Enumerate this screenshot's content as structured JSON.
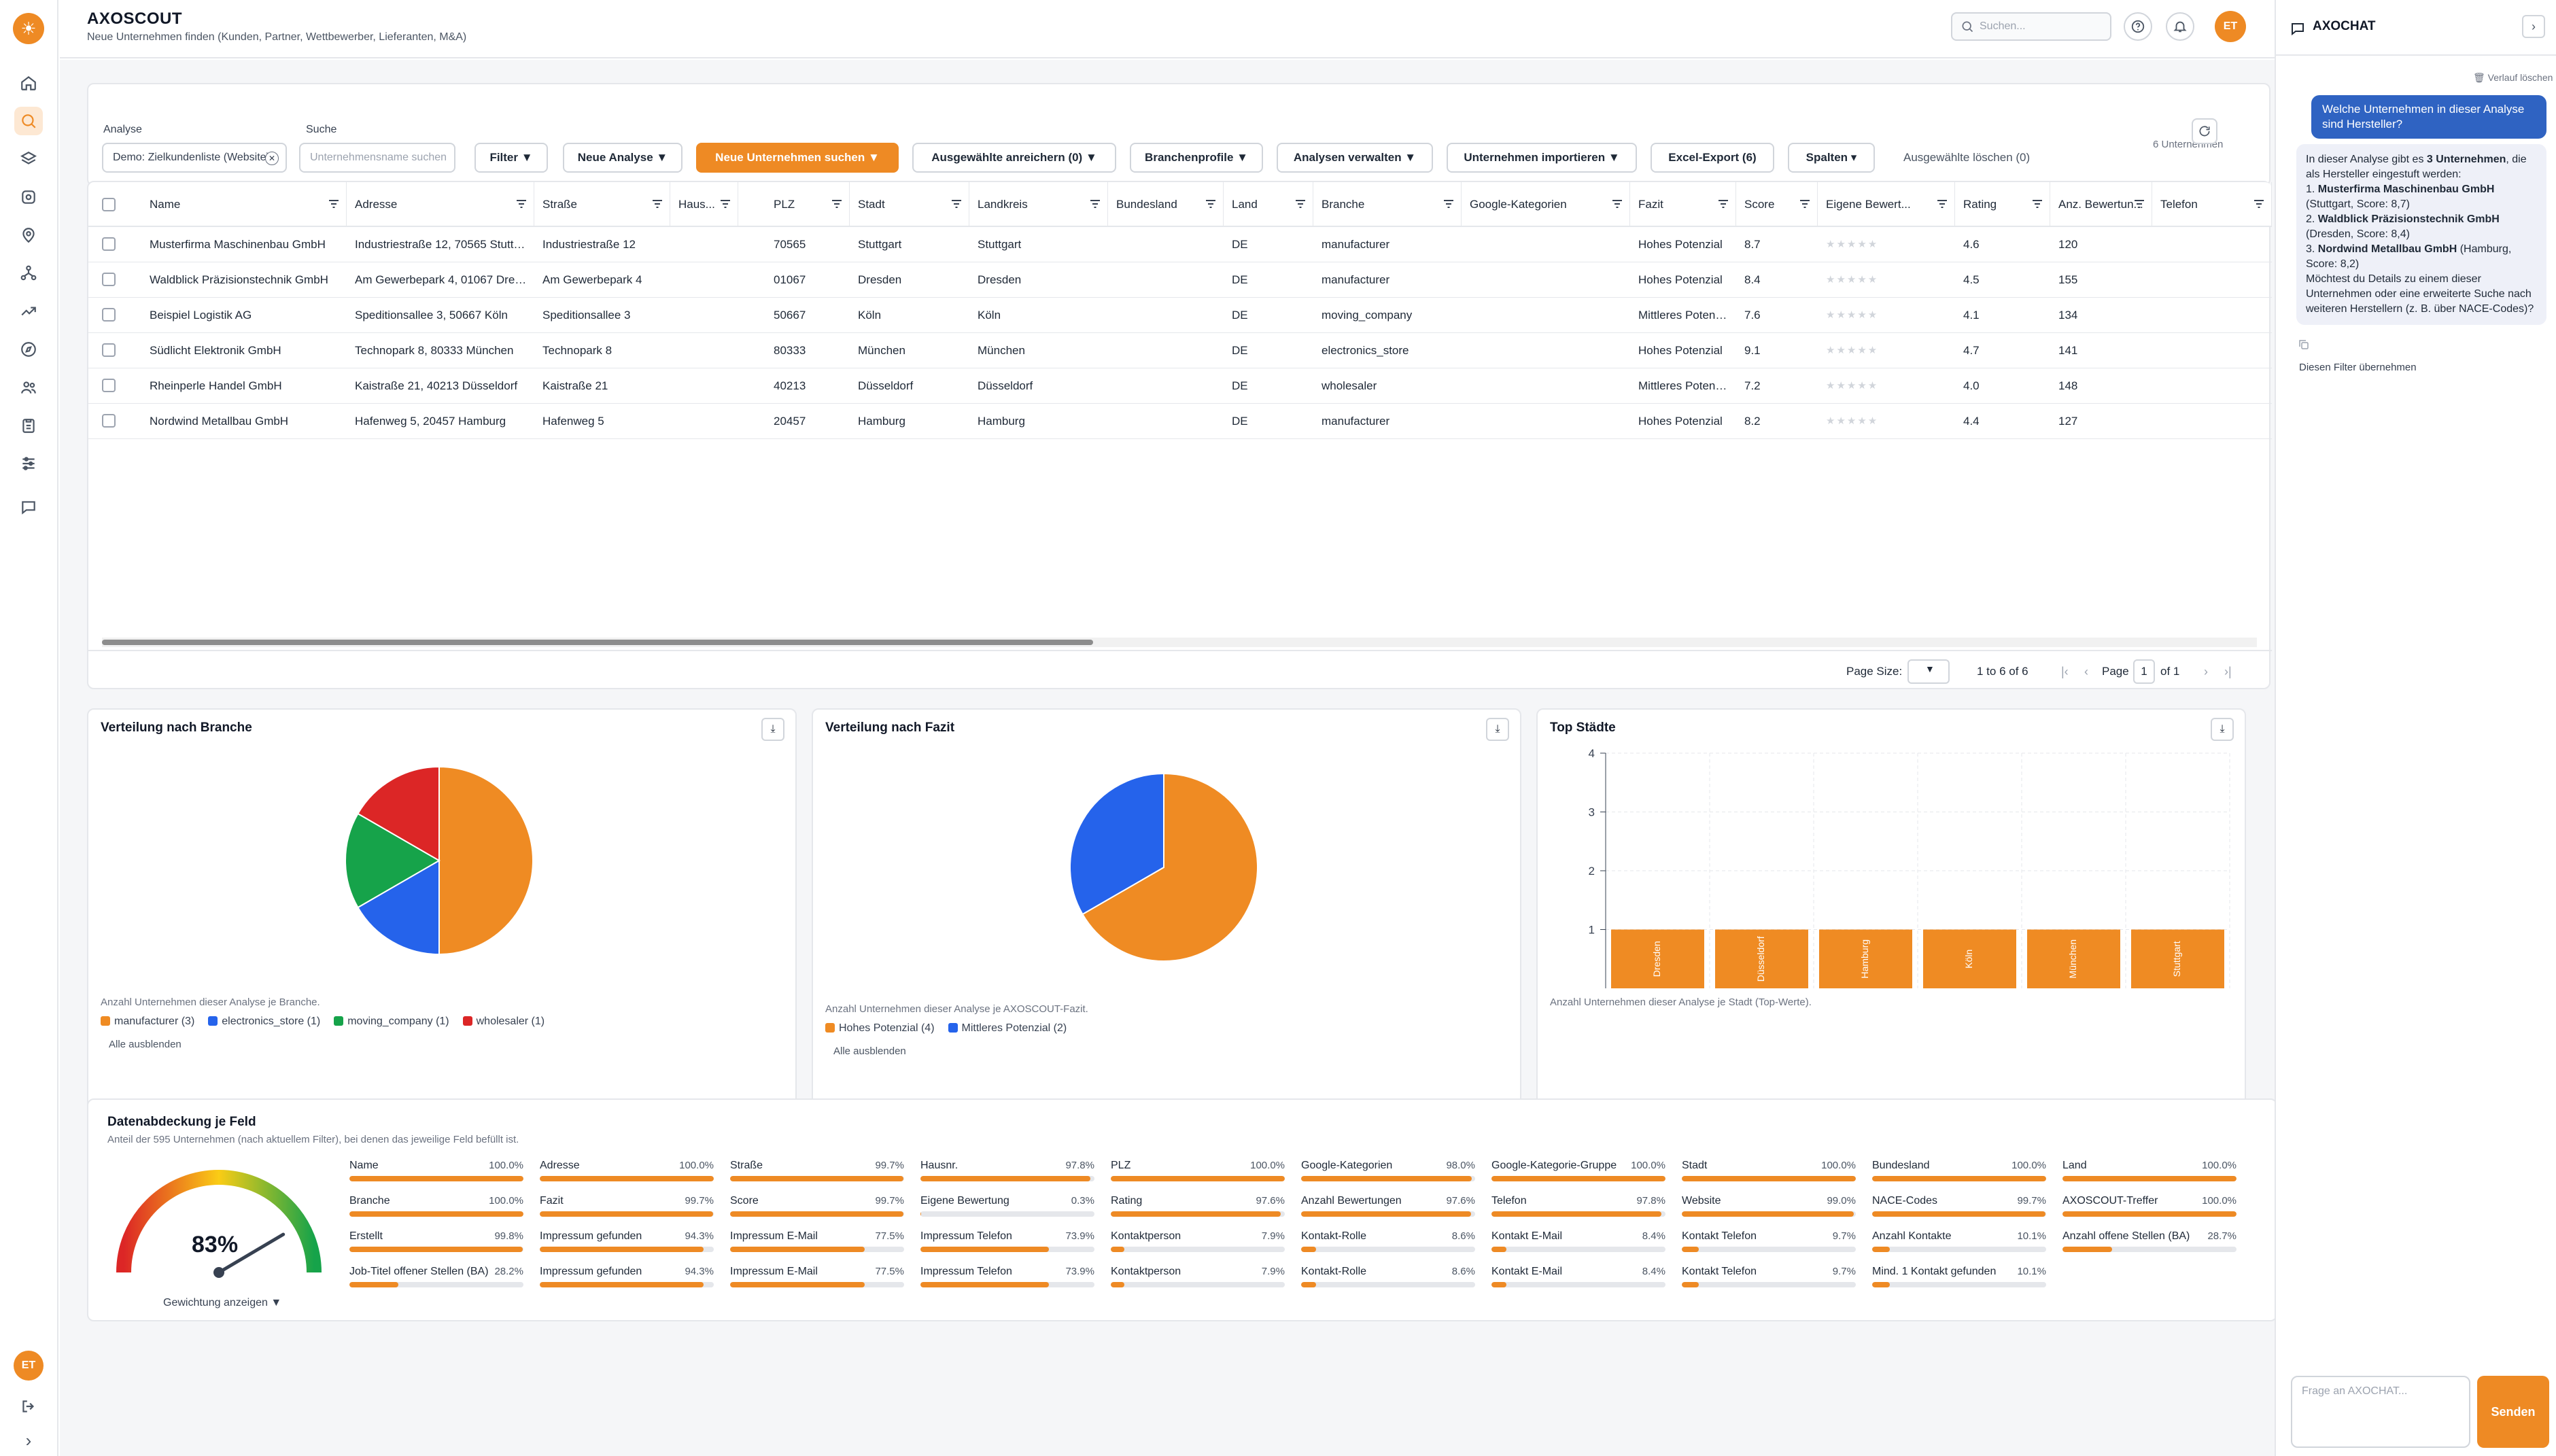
{
  "app": {
    "title": "AXOSCOUT",
    "subtitle": "Neue Unternehmen finden (Kunden, Partner, Wettbewerber, Lieferanten, M&A)",
    "search_placeholder": "Suchen...",
    "user_initials": "ET",
    "accent_color": "#ee8a24"
  },
  "sidebar": {
    "logo_glyph": "☀",
    "items": [
      {
        "icon": "home-icon"
      },
      {
        "icon": "search-icon",
        "active": true
      },
      {
        "icon": "layers-icon"
      },
      {
        "icon": "database-icon"
      },
      {
        "icon": "map-pin-icon"
      },
      {
        "icon": "network-icon"
      },
      {
        "icon": "trend-icon"
      },
      {
        "icon": "compass-icon"
      },
      {
        "icon": "users-icon"
      },
      {
        "icon": "clipboard-icon"
      },
      {
        "icon": "sliders-icon"
      },
      {
        "icon": "message-icon"
      }
    ],
    "user_initials": "ET",
    "logout_glyph": "⇥",
    "expand_glyph": "›"
  },
  "toolbar": {
    "analyse_label": "Analyse",
    "analyse_value": "Demo: Zielkundenliste (Website)",
    "suche_label": "Suche",
    "suche_placeholder": "Unternehmensname suchen",
    "filter": "Filter ▼",
    "new_analysis": "Neue Analyse ▼",
    "find_companies": "Neue Unternehmen suchen ▼",
    "enrich": "Ausgewählte anreichern (0) ▼",
    "branch_profiles": "Branchenprofile ▼",
    "manage": "Analysen verwalten ▼",
    "import": "Unternehmen importieren ▼",
    "excel": "Excel-Export (6)",
    "columns": "Spalten ▾",
    "clear_selected": "Ausgewählte löschen (0)",
    "count": "6 Unternehmen"
  },
  "table": {
    "columns": [
      "Name",
      "Adresse",
      "Straße",
      "Haus...",
      "PLZ",
      "Stadt",
      "Landkreis",
      "Bundesland",
      "Land",
      "Branche",
      "Google-Kategorien",
      "Fazit",
      "Score",
      "Eigene Bewert...",
      "Rating",
      "Anz. Bewertun...",
      "Telefon"
    ],
    "rows": [
      {
        "name": "Musterfirma Maschinenbau GmbH",
        "adresse": "Industriestraße 12, 70565 Stuttgart",
        "strasse": "Industriestraße 12",
        "plz": "70565",
        "stadt": "Stuttgart",
        "landkreis": "Stuttgart",
        "land": "DE",
        "branche": "manufacturer",
        "fazit": "Hohes Potenzial",
        "score": "8.7",
        "stars": "★★★★★",
        "rating": "4.6",
        "anz": "120"
      },
      {
        "name": "Waldblick Präzisionstechnik GmbH",
        "adresse": "Am Gewerbepark 4, 01067 Dresden",
        "strasse": "Am Gewerbepark 4",
        "plz": "01067",
        "stadt": "Dresden",
        "landkreis": "Dresden",
        "land": "DE",
        "branche": "manufacturer",
        "fazit": "Hohes Potenzial",
        "score": "8.4",
        "stars": "★★★★★",
        "rating": "4.5",
        "anz": "155"
      },
      {
        "name": "Beispiel Logistik AG",
        "adresse": "Speditionsallee 3, 50667 Köln",
        "strasse": "Speditionsallee 3",
        "plz": "50667",
        "stadt": "Köln",
        "landkreis": "Köln",
        "land": "DE",
        "branche": "moving_company",
        "fazit": "Mittleres Potenzial",
        "score": "7.6",
        "stars": "★★★★★",
        "rating": "4.1",
        "anz": "134"
      },
      {
        "name": "Südlicht Elektronik GmbH",
        "adresse": "Technopark 8, 80333 München",
        "strasse": "Technopark 8",
        "plz": "80333",
        "stadt": "München",
        "landkreis": "München",
        "land": "DE",
        "branche": "electronics_store",
        "fazit": "Hohes Potenzial",
        "score": "9.1",
        "stars": "★★★★★",
        "rating": "4.7",
        "anz": "141"
      },
      {
        "name": "Rheinperle Handel GmbH",
        "adresse": "Kaistraße 21, 40213 Düsseldorf",
        "strasse": "Kaistraße 21",
        "plz": "40213",
        "stadt": "Düsseldorf",
        "landkreis": "Düsseldorf",
        "land": "DE",
        "branche": "wholesaler",
        "fazit": "Mittleres Potenzial",
        "score": "7.2",
        "stars": "★★★★★",
        "rating": "4.0",
        "anz": "148"
      },
      {
        "name": "Nordwind Metallbau GmbH",
        "adresse": "Hafenweg 5, 20457 Hamburg",
        "strasse": "Hafenweg 5",
        "plz": "20457",
        "stadt": "Hamburg",
        "landkreis": "Hamburg",
        "land": "DE",
        "branche": "manufacturer",
        "fazit": "Hohes Potenzial",
        "score": "8.2",
        "stars": "★★★★★",
        "rating": "4.4",
        "anz": "127"
      }
    ]
  },
  "pager": {
    "page_size_label": "Page Size:",
    "range": "1 to 6 of 6",
    "page_label": "Page",
    "page": "1",
    "of": "of 1",
    "first": "|‹",
    "prev": "‹",
    "next": "›",
    "last": "›|"
  },
  "charts": {
    "branche_title": "Verteilung nach Branche",
    "branche_note": "Anzahl Unternehmen dieser Analyse je Branche.",
    "fazit_title": "Verteilung nach Fazit",
    "fazit_note": "Anzahl Unternehmen dieser Analyse je AXOSCOUT-Fazit.",
    "staedte_title": "Top Städte",
    "staedte_note": "Anzahl Unternehmen dieser Analyse je Stadt (Top-Werte).",
    "hide_all": "Alle ausblenden",
    "download_glyph": "⤓"
  },
  "chart_data": [
    {
      "type": "pie",
      "title": "Verteilung nach Branche",
      "categories": [
        "manufacturer",
        "electronics_store",
        "moving_company",
        "wholesaler"
      ],
      "values": [
        3,
        1,
        1,
        1
      ],
      "legend_labels": [
        "manufacturer (3)",
        "electronics_store (1)",
        "moving_company (1)",
        "wholesaler (1)"
      ],
      "colors": [
        "#ef8b23",
        "#2563eb",
        "#16a34a",
        "#dc2626"
      ],
      "legend": "bottom-left"
    },
    {
      "type": "pie",
      "title": "Verteilung nach Fazit",
      "categories": [
        "Hohes Potenzial",
        "Mittleres Potenzial"
      ],
      "values": [
        4,
        2
      ],
      "legend_labels": [
        "Hohes Potenzial (4)",
        "Mittleres Potenzial (2)"
      ],
      "colors": [
        "#ef8b23",
        "#2563eb"
      ],
      "legend": "bottom-left"
    },
    {
      "type": "bar",
      "title": "Top Städte",
      "categories": [
        "Dresden",
        "Düsseldorf",
        "Hamburg",
        "Köln",
        "München",
        "Stuttgart"
      ],
      "values": [
        1,
        1,
        1,
        1,
        1,
        1
      ],
      "ylim": [
        0,
        4
      ],
      "yticks": [
        1,
        2,
        3,
        4
      ],
      "grid": true,
      "color": "#ef8b23"
    }
  ],
  "coverage": {
    "title": "Datenabdeckung je Feld",
    "subtitle": "Anteil der 595 Unternehmen (nach aktuellem Filter), bei denen das jeweilige Feld befüllt ist.",
    "gauge_value": "83%",
    "gauge_fraction": 0.83,
    "weight_link": "Gewichtung anzeigen ▼",
    "fields": [
      {
        "name": "Name",
        "pct": "100.0%",
        "value": 100.0
      },
      {
        "name": "Adresse",
        "pct": "100.0%",
        "value": 100.0
      },
      {
        "name": "Straße",
        "pct": "99.7%",
        "value": 99.7
      },
      {
        "name": "Hausnr.",
        "pct": "97.8%",
        "value": 97.8
      },
      {
        "name": "PLZ",
        "pct": "100.0%",
        "value": 100.0
      },
      {
        "name": "Google-Kategorien",
        "pct": "98.0%",
        "value": 98.0
      },
      {
        "name": "Google-Kategorie-Gruppe",
        "pct": "100.0%",
        "value": 100.0
      },
      {
        "name": "Stadt",
        "pct": "100.0%",
        "value": 100.0
      },
      {
        "name": "Bundesland",
        "pct": "100.0%",
        "value": 100.0
      },
      {
        "name": "Land",
        "pct": "100.0%",
        "value": 100.0
      },
      {
        "name": "Branche",
        "pct": "100.0%",
        "value": 100.0
      },
      {
        "name": "Fazit",
        "pct": "99.7%",
        "value": 99.7
      },
      {
        "name": "Score",
        "pct": "99.7%",
        "value": 99.7
      },
      {
        "name": "Eigene Bewertung",
        "pct": "0.3%",
        "value": 0.3
      },
      {
        "name": "Rating",
        "pct": "97.6%",
        "value": 97.6
      },
      {
        "name": "Anzahl Bewertungen",
        "pct": "97.6%",
        "value": 97.6
      },
      {
        "name": "Telefon",
        "pct": "97.8%",
        "value": 97.8
      },
      {
        "name": "Website",
        "pct": "99.0%",
        "value": 99.0
      },
      {
        "name": "NACE-Codes",
        "pct": "99.7%",
        "value": 99.7
      },
      {
        "name": "AXOSCOUT-Treffer",
        "pct": "100.0%",
        "value": 100.0
      },
      {
        "name": "Erstellt",
        "pct": "99.8%",
        "value": 99.8
      },
      {
        "name": "Impressum gefunden",
        "pct": "94.3%",
        "value": 94.3
      },
      {
        "name": "Impressum E-Mail",
        "pct": "77.5%",
        "value": 77.5
      },
      {
        "name": "Impressum Telefon",
        "pct": "73.9%",
        "value": 73.9
      },
      {
        "name": "Kontaktperson",
        "pct": "7.9%",
        "value": 7.9
      },
      {
        "name": "Kontakt-Rolle",
        "pct": "8.6%",
        "value": 8.6
      },
      {
        "name": "Kontakt E-Mail",
        "pct": "8.4%",
        "value": 8.4
      },
      {
        "name": "Kontakt Telefon",
        "pct": "9.7%",
        "value": 9.7
      },
      {
        "name": "Anzahl Kontakte",
        "pct": "10.1%",
        "value": 10.1
      },
      {
        "name": "Anzahl offene Stellen (BA)",
        "pct": "28.7%",
        "value": 28.7
      },
      {
        "name": "Job-Titel offener Stellen (BA)",
        "pct": "28.2%",
        "value": 28.2
      },
      {
        "name": "Impressum gefunden",
        "pct": "94.3%",
        "value": 94.3
      },
      {
        "name": "Impressum E-Mail",
        "pct": "77.5%",
        "value": 77.5
      },
      {
        "name": "Impressum Telefon",
        "pct": "73.9%",
        "value": 73.9
      },
      {
        "name": "Kontaktperson",
        "pct": "7.9%",
        "value": 7.9
      },
      {
        "name": "Kontakt-Rolle",
        "pct": "8.6%",
        "value": 8.6
      },
      {
        "name": "Kontakt E-Mail",
        "pct": "8.4%",
        "value": 8.4
      },
      {
        "name": "Kontakt Telefon",
        "pct": "9.7%",
        "value": 9.7
      },
      {
        "name": "Mind. 1 Kontakt gefunden",
        "pct": "10.1%",
        "value": 10.1
      }
    ]
  },
  "chat": {
    "title": "AXOCHAT",
    "collapse_glyph": "›",
    "clear_history": "Verlauf löschen",
    "user_message": "Welche Unternehmen in dieser Analyse sind Hersteller?",
    "bot": {
      "intro_a": "In dieser Analyse gibt es ",
      "intro_b": "3 Unternehmen",
      "intro_c": ", die als Hersteller eingestuft werden:",
      "item1_num": "1. ",
      "item1_name": "Musterfirma Maschinenbau GmbH",
      "item1_detail": "(Stuttgart, Score: 8,7)",
      "item2_num": "2. ",
      "item2_name": "Waldblick Präzisionstechnik GmbH",
      "item2_detail": "(Dresden, Score: 8,4)",
      "item3_num": "3. ",
      "item3_name": "Nordwind Metallbau GmbH",
      "item3_detail": "(Hamburg, Score: 8,2)",
      "outro": "Möchtest du Details zu einem dieser Unternehmen oder eine erweiterte Suche nach weiteren Herstellern (z. B. über NACE-Codes)?"
    },
    "apply_filter": "Diesen Filter übernehmen",
    "input_placeholder": "Frage an AXOCHAT...",
    "send": "Senden"
  }
}
